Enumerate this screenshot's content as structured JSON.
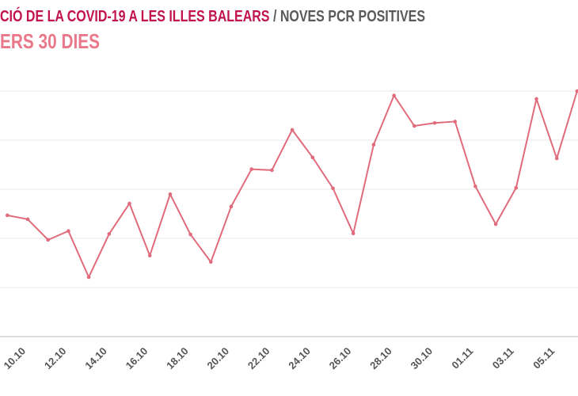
{
  "chart_data": {
    "type": "line",
    "title": "CIÓ DE LA COVID-19 A LES ILLES BALEARS",
    "title_suffix": "/ NOVES PCR POSITIVES",
    "subtitle": "ERS 30 DIES",
    "xlabel": "",
    "ylabel": "",
    "y_unit_note": "relative grid units (y-axis labels not visible)",
    "ylim": [
      0,
      5
    ],
    "grid": true,
    "x": [
      "09.10",
      "10.10",
      "11.10",
      "12.10",
      "13.10",
      "14.10",
      "15.10",
      "16.10",
      "17.10",
      "18.10",
      "19.10",
      "20.10",
      "21.10",
      "22.10",
      "23.10",
      "24.10",
      "25.10",
      "26.10",
      "27.10",
      "28.10",
      "29.10",
      "30.10",
      "31.10",
      "01.11",
      "02.11",
      "03.11",
      "04.11",
      "05.11",
      "06.11"
    ],
    "tick_labels": [
      "10.10",
      "12.10",
      "14.10",
      "16.10",
      "18.10",
      "20.10",
      "22.10",
      "24.10",
      "26.10",
      "28.10",
      "30.10",
      "01.11",
      "03.11",
      "05.11"
    ],
    "series": [
      {
        "name": "Noves PCR positives",
        "color": "#e06b7c",
        "values": [
          2.47,
          2.39,
          1.97,
          2.15,
          1.21,
          2.09,
          2.71,
          1.65,
          2.9,
          2.08,
          1.52,
          2.65,
          3.41,
          3.39,
          4.21,
          3.65,
          3.02,
          2.1,
          3.91,
          4.91,
          4.29,
          4.35,
          4.38,
          3.06,
          2.29,
          3.03,
          4.84,
          3.63,
          5.0
        ]
      }
    ]
  }
}
